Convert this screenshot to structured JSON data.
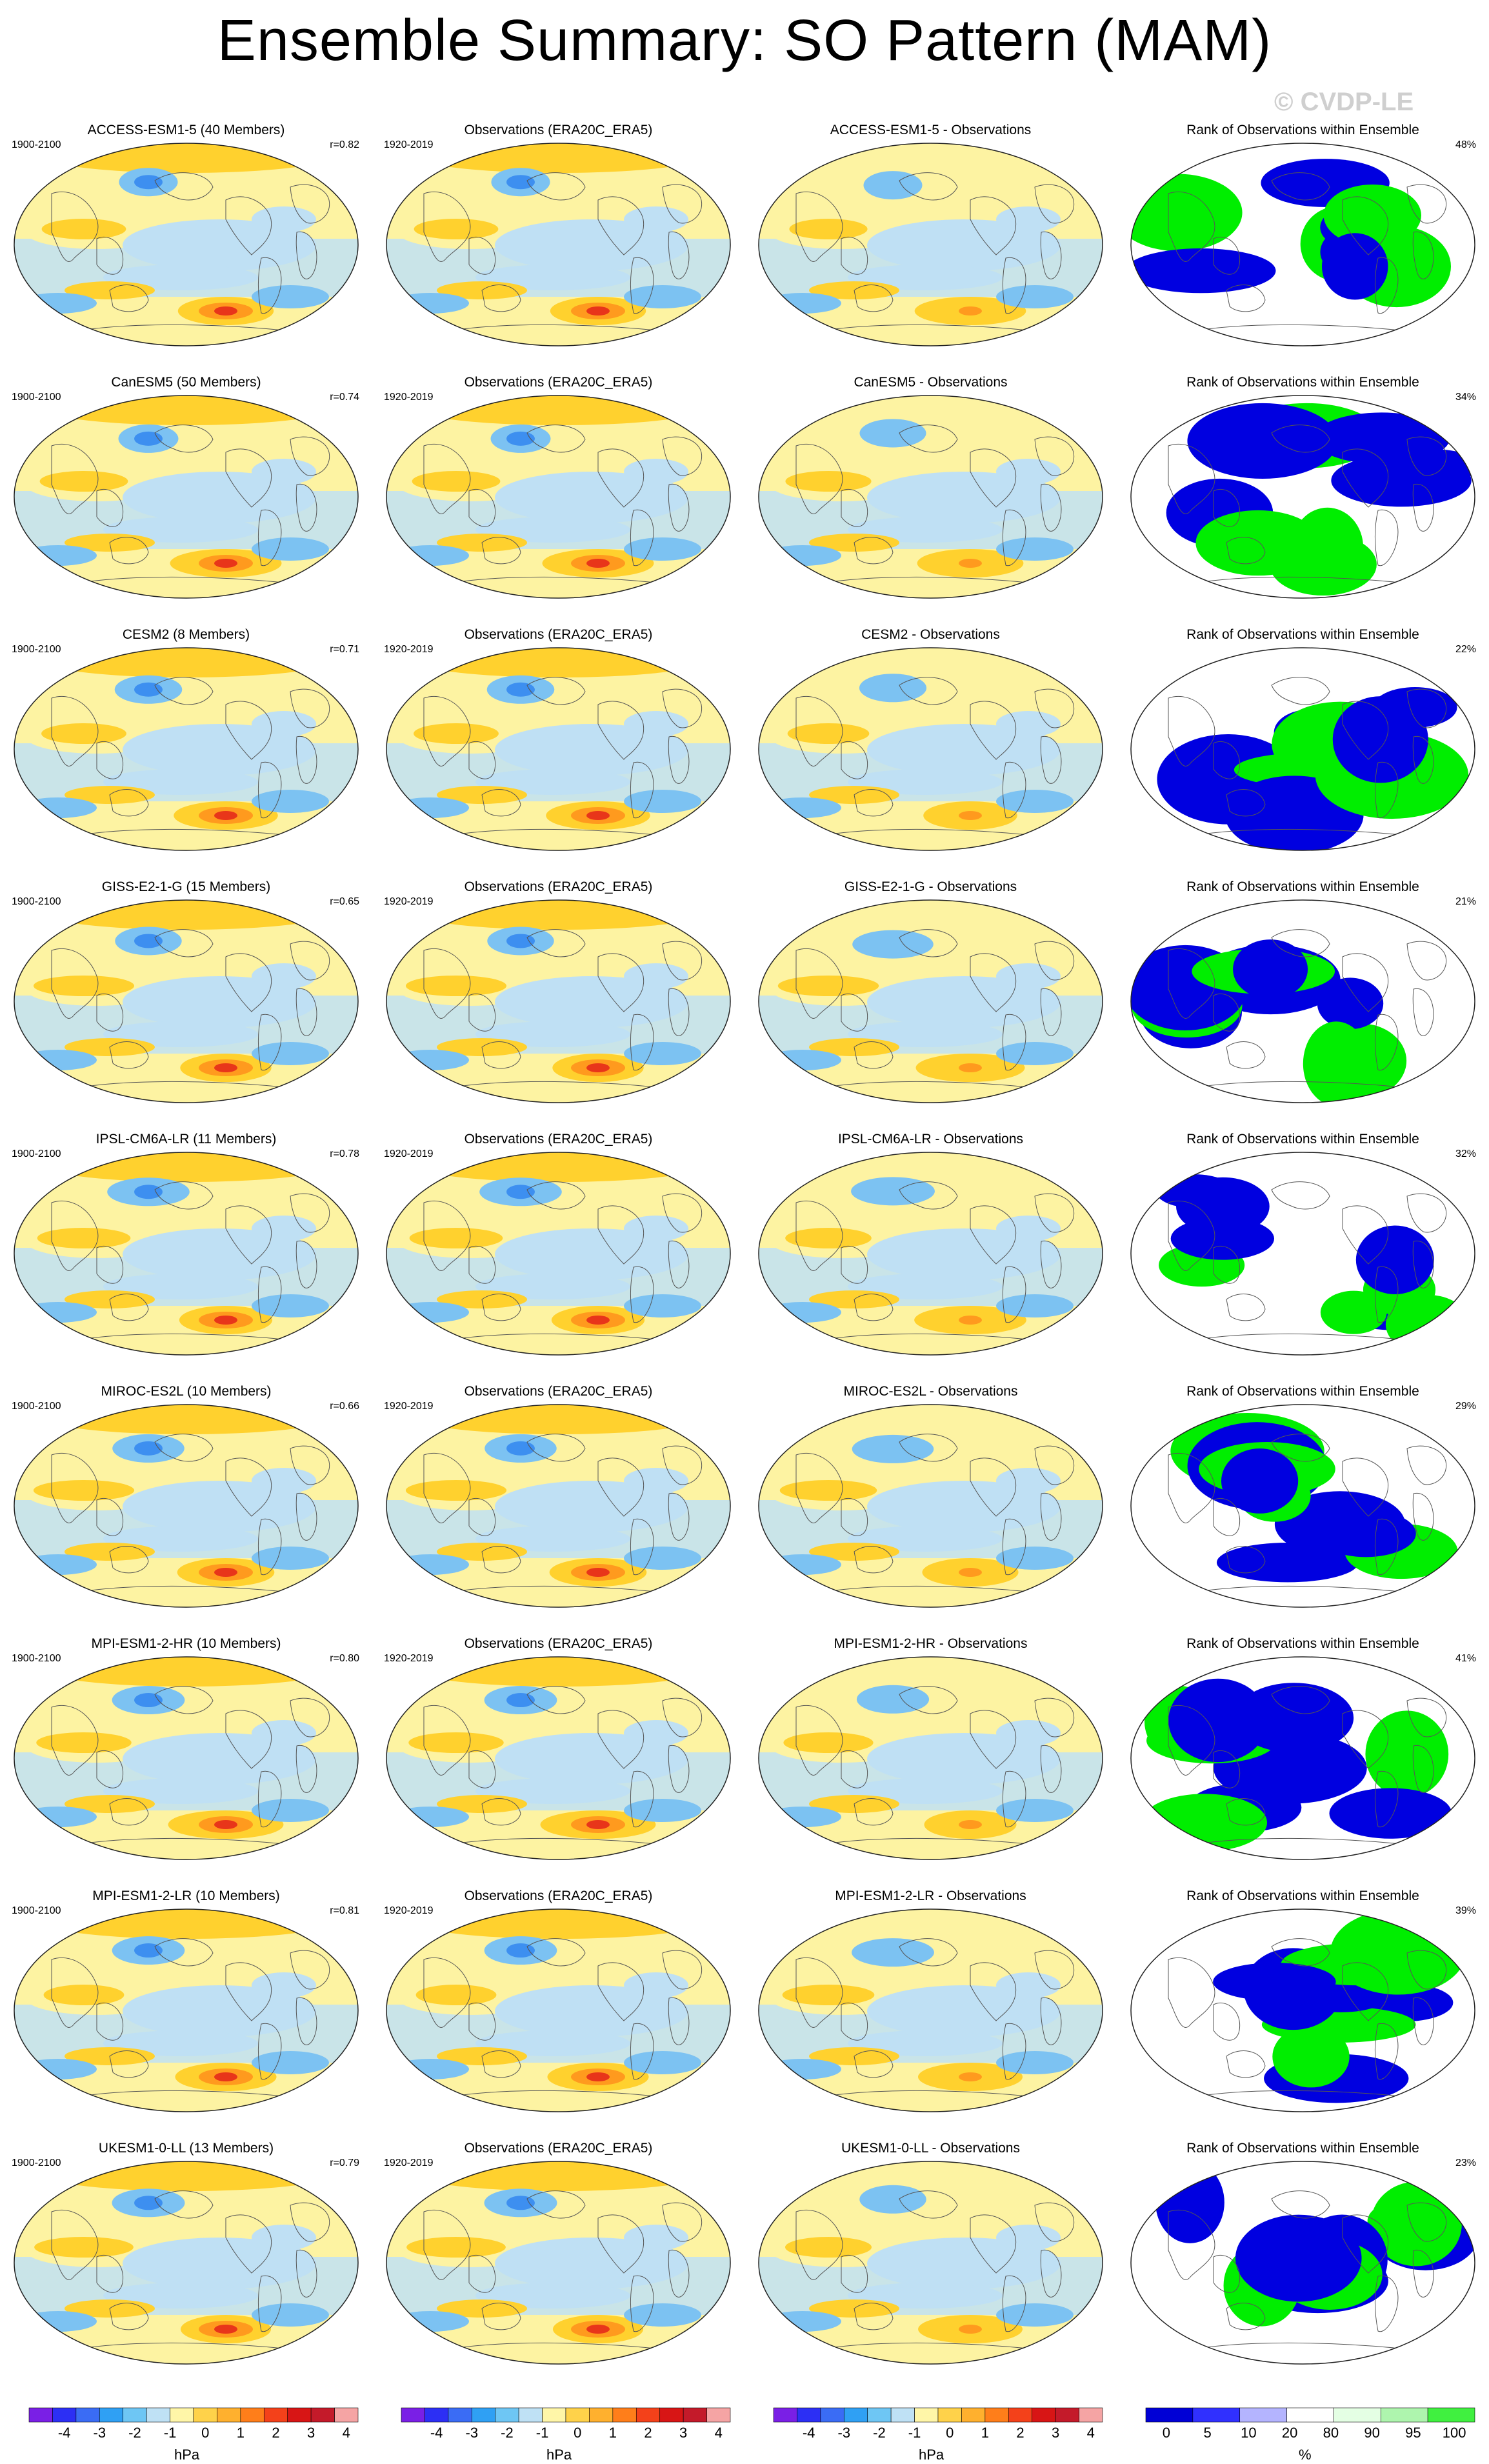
{
  "title": "Ensemble Summary: SO Pattern (MAM)",
  "watermark": "© CVDP-LE",
  "obs_title": "Observations (ERA20C_ERA5)",
  "obs_period": "1920-2019",
  "model_period": "1900-2100",
  "rank_title": "Rank of Observations within Ensemble",
  "rows": [
    {
      "model_title": "ACCESS-ESM1-5 (40 Members)",
      "r": "r=0.82",
      "diff_title": "ACCESS-ESM1-5 - Observations",
      "rank_pct": "48%"
    },
    {
      "model_title": "CanESM5 (50 Members)",
      "r": "r=0.74",
      "diff_title": "CanESM5 - Observations",
      "rank_pct": "34%"
    },
    {
      "model_title": "CESM2 (8 Members)",
      "r": "r=0.71",
      "diff_title": "CESM2 - Observations",
      "rank_pct": "22%"
    },
    {
      "model_title": "GISS-E2-1-G (15 Members)",
      "r": "r=0.65",
      "diff_title": "GISS-E2-1-G - Observations",
      "rank_pct": "21%"
    },
    {
      "model_title": "IPSL-CM6A-LR (11 Members)",
      "r": "r=0.78",
      "diff_title": "IPSL-CM6A-LR - Observations",
      "rank_pct": "32%"
    },
    {
      "model_title": "MIROC-ES2L (10 Members)",
      "r": "r=0.66",
      "diff_title": "MIROC-ES2L - Observations",
      "rank_pct": "29%"
    },
    {
      "model_title": "MPI-ESM1-2-HR (10 Members)",
      "r": "r=0.80",
      "diff_title": "MPI-ESM1-2-HR - Observations",
      "rank_pct": "41%"
    },
    {
      "model_title": "MPI-ESM1-2-LR (10 Members)",
      "r": "r=0.81",
      "diff_title": "MPI-ESM1-2-LR - Observations",
      "rank_pct": "39%"
    },
    {
      "model_title": "UKESM1-0-LL (13 Members)",
      "r": "r=0.79",
      "diff_title": "UKESM1-0-LL - Observations",
      "rank_pct": "23%"
    }
  ],
  "colorbar_hpa": {
    "labels": [
      "-4",
      "-3",
      "-2",
      "-1",
      "0",
      "1",
      "2",
      "3",
      "4"
    ],
    "unit": "hPa",
    "colors": [
      "#7a1fe6",
      "#2c2ff5",
      "#3a6cf5",
      "#2fa0f4",
      "#6ec6f4",
      "#bfe1f5",
      "#fff6a8",
      "#ffd24a",
      "#ffb02e",
      "#ff7e1a",
      "#f4411a",
      "#d81515",
      "#c41a2a",
      "#f5a4a4"
    ]
  },
  "colorbar_rank": {
    "labels": [
      "0",
      "5",
      "10",
      "20",
      "80",
      "90",
      "95",
      "100"
    ],
    "unit": "%",
    "colors": [
      "#0000d6",
      "#3030ff",
      "#b4b4ff",
      "#ffffff",
      "#e4ffe4",
      "#aef5ae",
      "#40f040"
    ]
  },
  "map_colors": {
    "land_line": "#555555",
    "pos_weak": "#fdf3a2",
    "pos_mid": "#ffd12e",
    "pos_strong": "#ff9a1e",
    "pos_max": "#e8351a",
    "neg_weak": "#bfe0f4",
    "neg_mid": "#7cc2f2",
    "neg_strong": "#3d8ff0",
    "rank_low": "#0000e0",
    "rank_high": "#00ee00"
  }
}
